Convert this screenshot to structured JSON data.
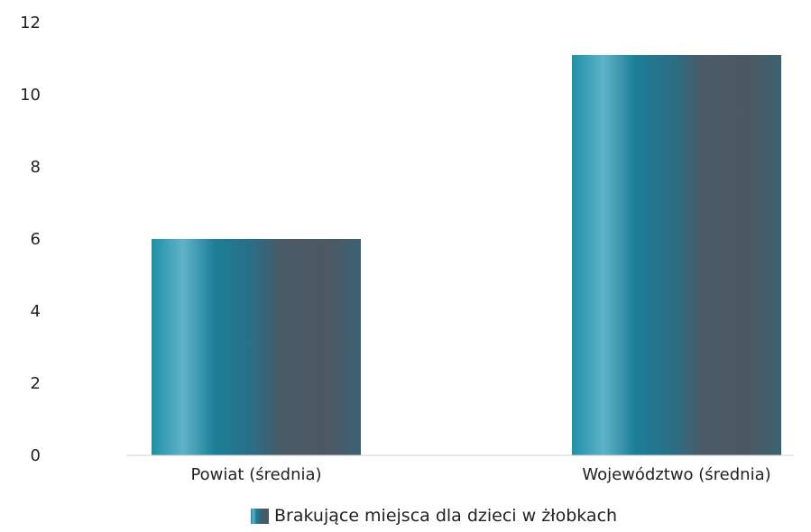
{
  "chart_data": {
    "type": "bar",
    "categories": [
      "Powiat (średnia)",
      "Województwo (średnia)"
    ],
    "series": [
      {
        "name": "Brakujące miejsca dla dzieci w żłobkach",
        "values": [
          6,
          11.1
        ]
      }
    ],
    "ylim": [
      0,
      12
    ],
    "yticks": [
      0,
      2,
      4,
      6,
      8,
      10,
      12
    ],
    "grid": false,
    "legend_position": "bottom",
    "colors": {
      "bar_edge": "#1e8fa6",
      "bar_light": "#5fb3c8",
      "bar_dark": "#4a5a66",
      "baseline": "#d0d0d0",
      "text": "#222222"
    }
  }
}
